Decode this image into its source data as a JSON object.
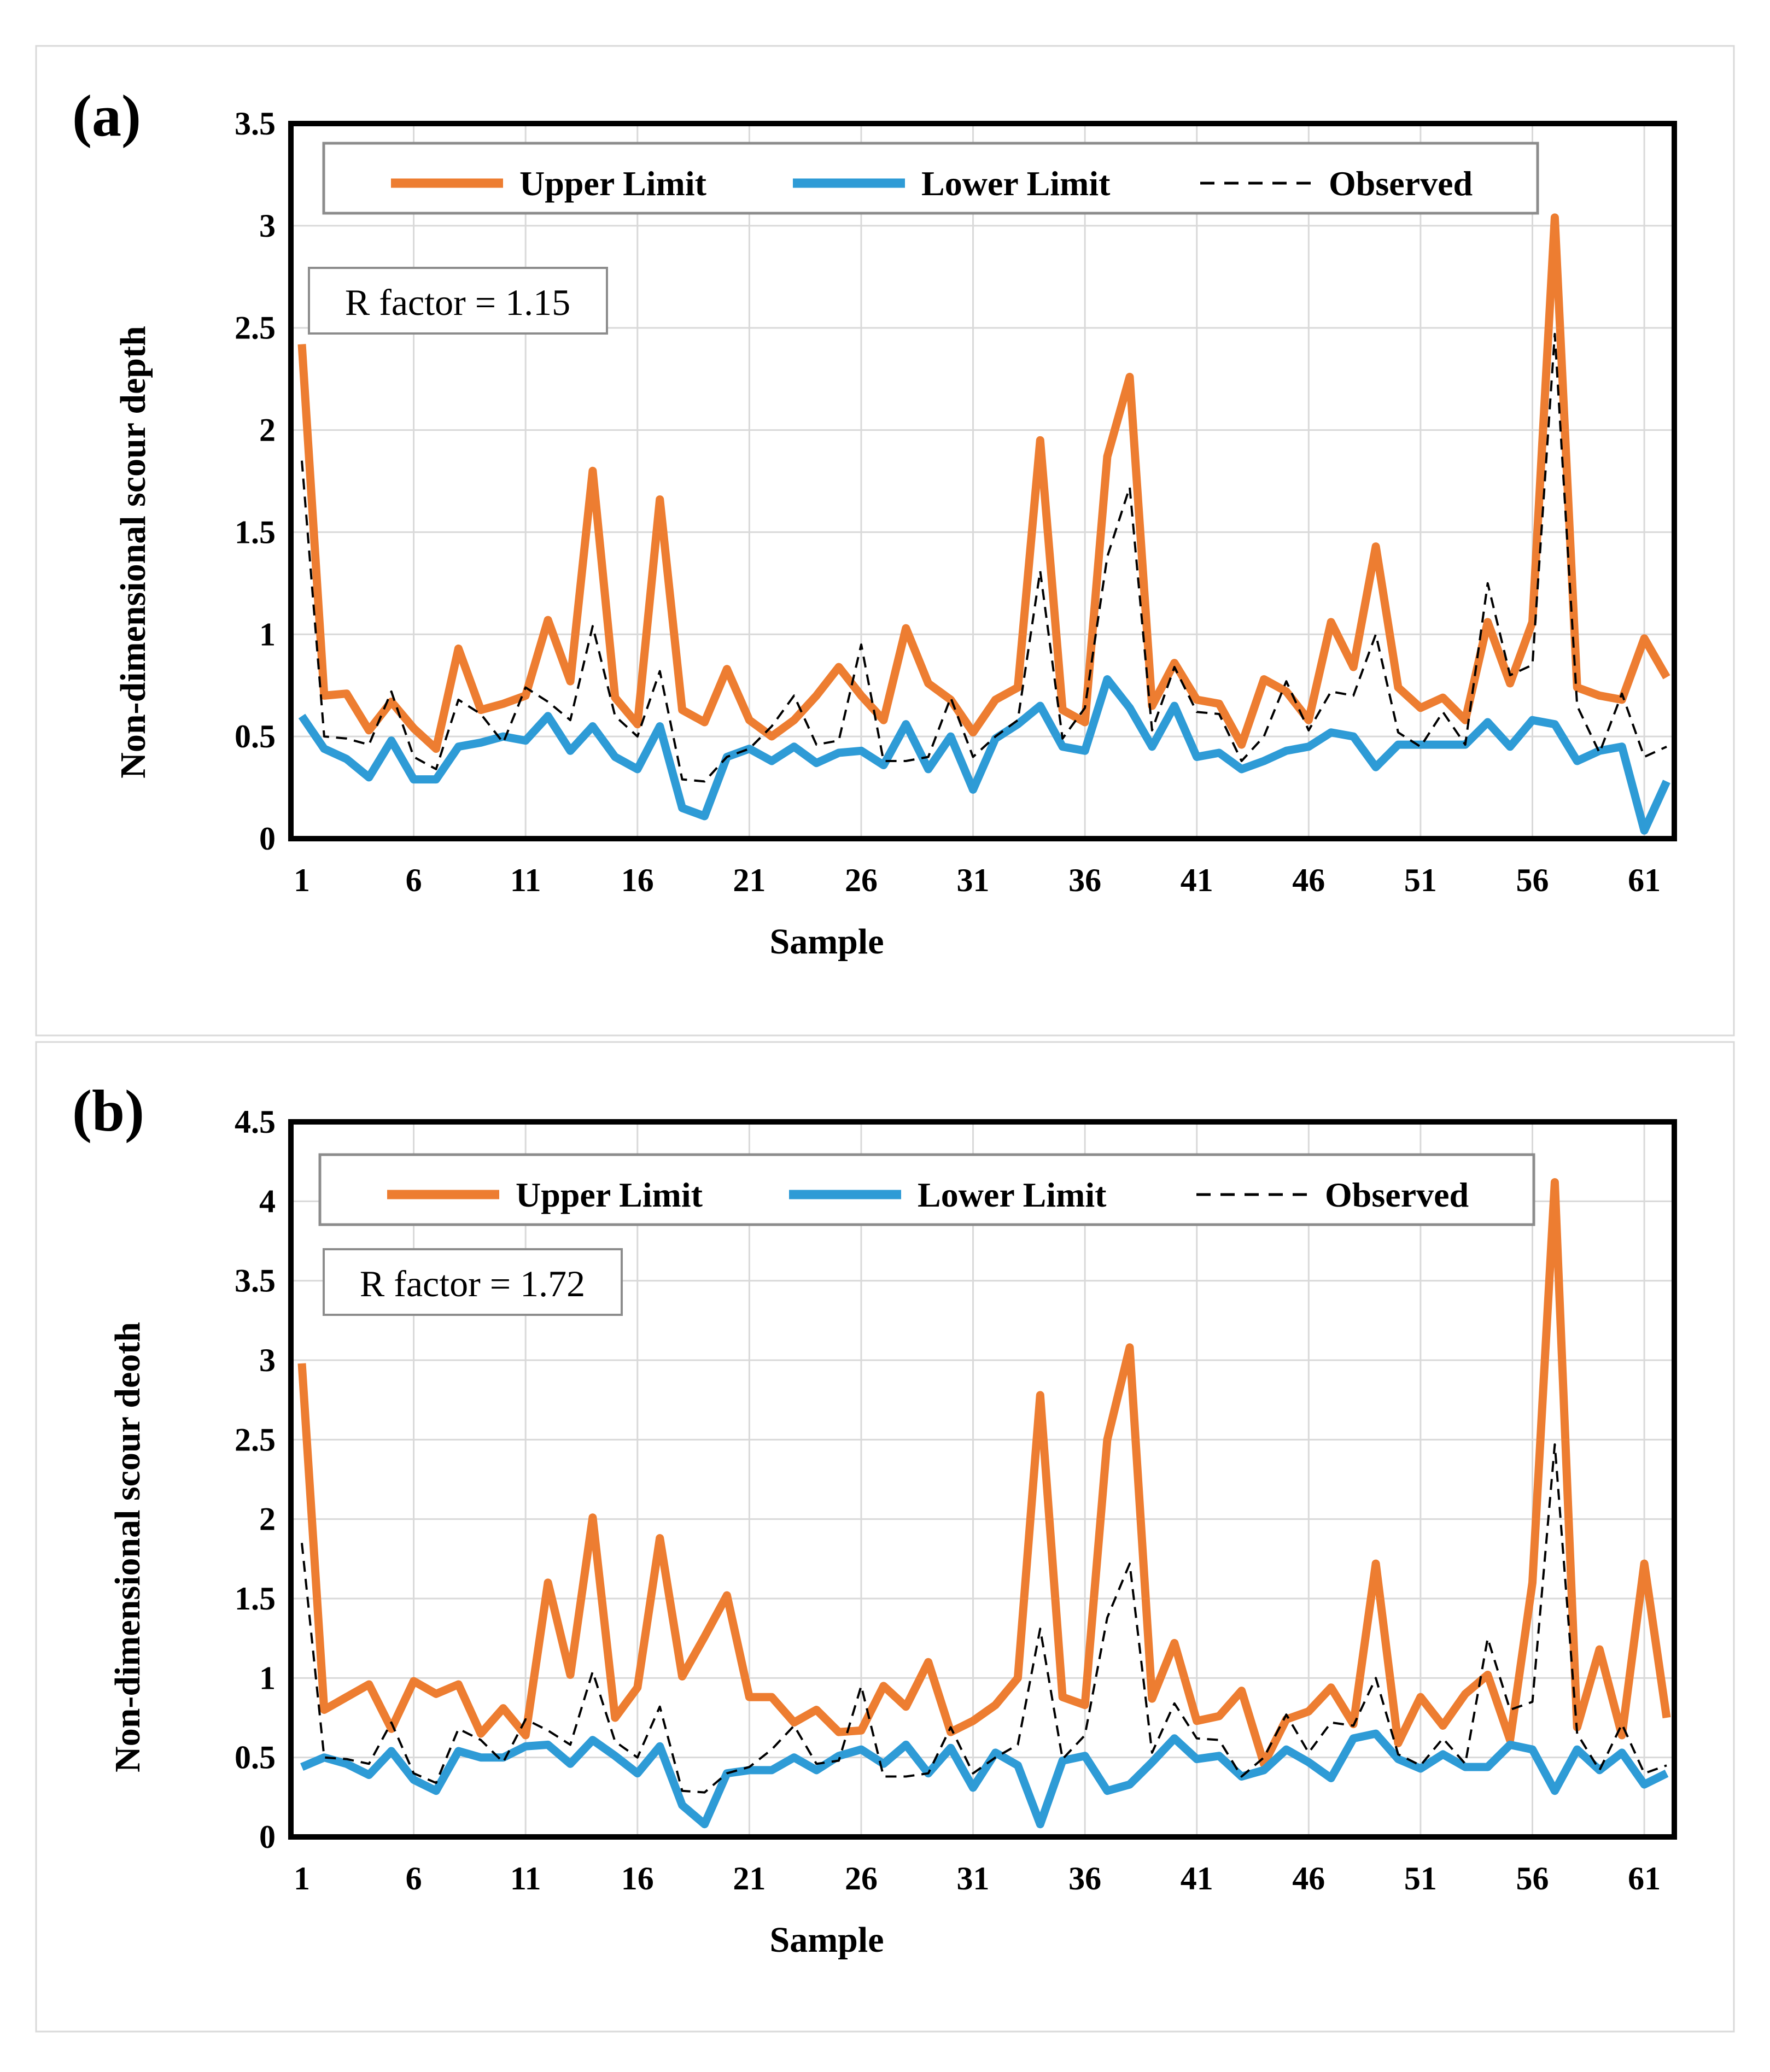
{
  "chart_data": [
    {
      "type": "line",
      "panel_label": "(a)",
      "xlabel": "Sample",
      "ylabel": "Non-dimensional  scour depth",
      "ylim": [
        0,
        3.5
      ],
      "yticks": [
        "0",
        "0.5",
        "1",
        "1.5",
        "2",
        "2.5",
        "3",
        "3.5"
      ],
      "xticks": [
        "1",
        "6",
        "11",
        "16",
        "21",
        "26",
        "31",
        "36",
        "41",
        "46",
        "51",
        "56",
        "61"
      ],
      "annotation": "R factor = 1.15",
      "legend": [
        "Upper Limit",
        "Lower Limit",
        "Observed"
      ],
      "colors": {
        "upper": "#ed7d31",
        "lower": "#2e9bd6",
        "observed": "#000000"
      },
      "series": [
        {
          "name": "Upper Limit",
          "values": [
            2.42,
            0.7,
            0.71,
            0.53,
            0.67,
            0.54,
            0.44,
            0.93,
            0.63,
            0.66,
            0.7,
            1.07,
            0.77,
            1.8,
            0.69,
            0.56,
            1.66,
            0.63,
            0.57,
            0.83,
            0.58,
            0.5,
            0.58,
            0.7,
            0.84,
            0.7,
            0.58,
            1.03,
            0.76,
            0.68,
            0.52,
            0.68,
            0.74,
            1.95,
            0.63,
            0.57,
            1.87,
            2.26,
            0.65,
            0.86,
            0.68,
            0.66,
            0.46,
            0.78,
            0.72,
            0.58,
            1.06,
            0.84,
            1.43,
            0.74,
            0.64,
            0.69,
            0.58,
            1.06,
            0.76,
            1.06,
            3.04,
            0.74,
            0.7,
            0.68,
            0.98,
            0.79
          ]
        },
        {
          "name": "Lower Limit",
          "values": [
            0.6,
            0.44,
            0.39,
            0.3,
            0.48,
            0.29,
            0.29,
            0.45,
            0.47,
            0.5,
            0.48,
            0.6,
            0.43,
            0.55,
            0.4,
            0.34,
            0.55,
            0.15,
            0.11,
            0.4,
            0.44,
            0.38,
            0.45,
            0.37,
            0.42,
            0.43,
            0.36,
            0.56,
            0.34,
            0.5,
            0.24,
            0.49,
            0.56,
            0.65,
            0.45,
            0.43,
            0.78,
            0.64,
            0.45,
            0.65,
            0.4,
            0.42,
            0.34,
            0.38,
            0.43,
            0.45,
            0.52,
            0.5,
            0.35,
            0.46,
            0.46,
            0.46,
            0.46,
            0.57,
            0.45,
            0.58,
            0.56,
            0.38,
            0.43,
            0.45,
            0.04,
            0.28
          ]
        },
        {
          "name": "Observed",
          "values": [
            1.85,
            0.5,
            0.49,
            0.46,
            0.72,
            0.4,
            0.34,
            0.68,
            0.61,
            0.47,
            0.74,
            0.67,
            0.58,
            1.04,
            0.6,
            0.5,
            0.82,
            0.29,
            0.28,
            0.4,
            0.44,
            0.55,
            0.7,
            0.46,
            0.48,
            0.95,
            0.38,
            0.38,
            0.4,
            0.69,
            0.4,
            0.5,
            0.58,
            1.31,
            0.49,
            0.64,
            1.38,
            1.72,
            0.53,
            0.84,
            0.62,
            0.61,
            0.38,
            0.5,
            0.77,
            0.53,
            0.72,
            0.7,
            1.0,
            0.52,
            0.45,
            0.62,
            0.46,
            1.25,
            0.8,
            0.85,
            2.47,
            0.65,
            0.42,
            0.71,
            0.4,
            0.45
          ]
        }
      ]
    },
    {
      "type": "line",
      "panel_label": "(b)",
      "xlabel": "Sample",
      "ylabel": "Non-dimensional  scour deoth",
      "ylim": [
        0,
        4.5
      ],
      "yticks": [
        "0",
        "0.5",
        "1",
        "1.5",
        "2",
        "2.5",
        "3",
        "3.5",
        "4",
        "4.5"
      ],
      "xticks": [
        "1",
        "6",
        "11",
        "16",
        "21",
        "26",
        "31",
        "36",
        "41",
        "46",
        "51",
        "56",
        "61"
      ],
      "annotation": "R factor = 1.72",
      "legend": [
        "Upper Limit",
        "Lower Limit",
        "Observed"
      ],
      "colors": {
        "upper": "#ed7d31",
        "lower": "#2e9bd6",
        "observed": "#000000"
      },
      "series": [
        {
          "name": "Upper Limit",
          "values": [
            2.98,
            0.8,
            0.88,
            0.96,
            0.68,
            0.98,
            0.9,
            0.96,
            0.65,
            0.81,
            0.64,
            1.6,
            1.02,
            2.01,
            0.75,
            0.94,
            1.88,
            1.01,
            1.26,
            1.52,
            0.88,
            0.88,
            0.72,
            0.8,
            0.66,
            0.67,
            0.95,
            0.82,
            1.1,
            0.66,
            0.73,
            0.83,
            1.0,
            2.78,
            0.88,
            0.83,
            2.5,
            3.08,
            0.87,
            1.22,
            0.73,
            0.76,
            0.92,
            0.46,
            0.74,
            0.79,
            0.94,
            0.71,
            1.72,
            0.59,
            0.88,
            0.7,
            0.9,
            1.02,
            0.61,
            1.6,
            4.12,
            0.69,
            1.18,
            0.64,
            1.72,
            0.75
          ]
        },
        {
          "name": "Lower Limit",
          "values": [
            0.44,
            0.5,
            0.46,
            0.39,
            0.54,
            0.36,
            0.29,
            0.54,
            0.5,
            0.5,
            0.57,
            0.58,
            0.46,
            0.61,
            0.51,
            0.4,
            0.57,
            0.2,
            0.08,
            0.4,
            0.42,
            0.42,
            0.5,
            0.42,
            0.51,
            0.55,
            0.46,
            0.58,
            0.4,
            0.56,
            0.31,
            0.53,
            0.45,
            0.08,
            0.48,
            0.51,
            0.29,
            0.33,
            0.47,
            0.62,
            0.49,
            0.51,
            0.38,
            0.42,
            0.55,
            0.47,
            0.37,
            0.62,
            0.65,
            0.49,
            0.43,
            0.52,
            0.44,
            0.44,
            0.58,
            0.55,
            0.29,
            0.55,
            0.42,
            0.53,
            0.33,
            0.4
          ]
        },
        {
          "name": "Observed",
          "values": [
            1.85,
            0.5,
            0.49,
            0.46,
            0.72,
            0.4,
            0.34,
            0.68,
            0.61,
            0.47,
            0.74,
            0.67,
            0.58,
            1.04,
            0.6,
            0.5,
            0.82,
            0.29,
            0.28,
            0.4,
            0.44,
            0.55,
            0.7,
            0.46,
            0.48,
            0.95,
            0.38,
            0.38,
            0.4,
            0.69,
            0.4,
            0.5,
            0.58,
            1.31,
            0.49,
            0.64,
            1.38,
            1.72,
            0.53,
            0.84,
            0.62,
            0.61,
            0.38,
            0.5,
            0.77,
            0.53,
            0.72,
            0.7,
            1.0,
            0.52,
            0.45,
            0.62,
            0.46,
            1.25,
            0.8,
            0.85,
            2.47,
            0.65,
            0.42,
            0.71,
            0.4,
            0.45
          ]
        }
      ]
    }
  ]
}
